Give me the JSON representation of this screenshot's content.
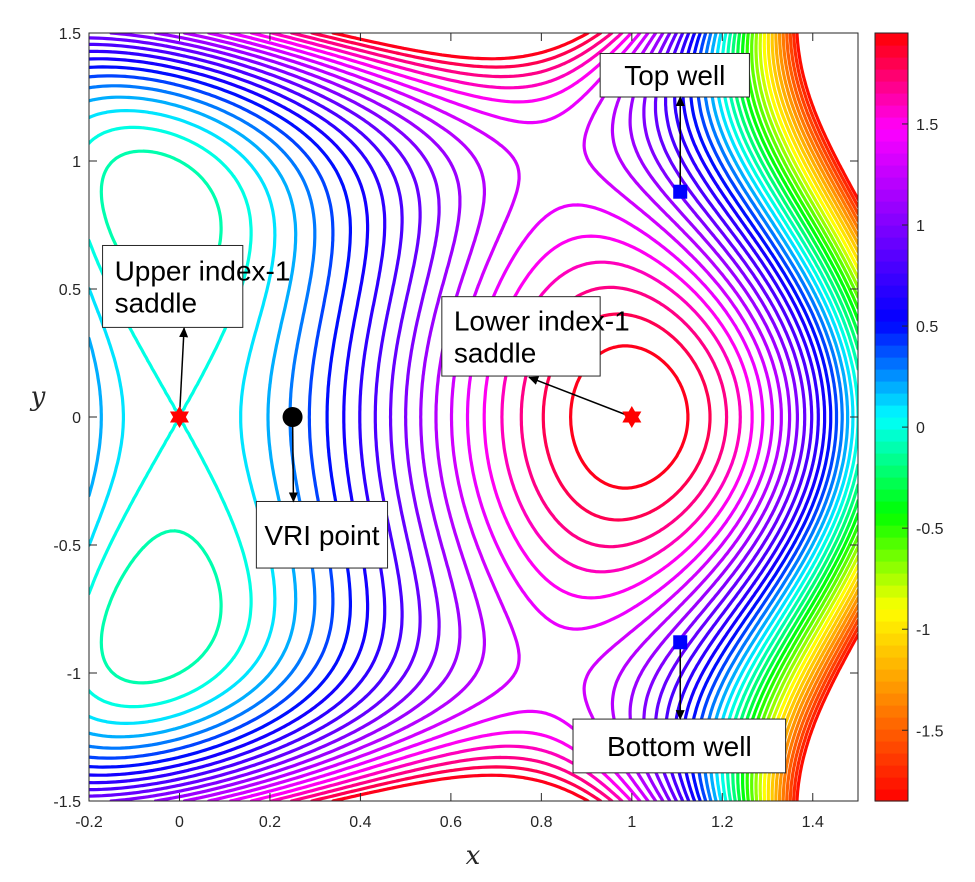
{
  "chart_data": {
    "type": "contour",
    "title": "",
    "xlabel": "x",
    "ylabel": "y",
    "xlim": [
      -0.2,
      1.5
    ],
    "ylim": [
      -1.5,
      1.5
    ],
    "xticks": [
      "-0.2",
      "0",
      "0.2",
      "0.4",
      "0.6",
      "0.8",
      "1",
      "1.2",
      "1.4"
    ],
    "yticks": [
      "-1.5",
      "-1",
      "-0.5",
      "0",
      "0.5",
      "1",
      "1.5"
    ],
    "colorbar": {
      "range": [
        -1.85,
        1.95
      ],
      "ticks": [
        "-1.5",
        "-1",
        "-0.5",
        "0",
        "0.5",
        "1",
        "1.5"
      ],
      "colormap": [
        "#ff0000",
        "#ff8000",
        "#ffff00",
        "#00ff00",
        "#00ffff",
        "#0000ff",
        "#8000ff",
        "#ff00ff",
        "#ff0000"
      ]
    },
    "contour_levels": [
      -1.8,
      -1.7,
      -1.6,
      -1.5,
      -1.4,
      -1.3,
      -1.2,
      -1.1,
      -1.0,
      -0.9,
      -0.8,
      -0.7,
      -0.6,
      -0.5,
      -0.4,
      -0.3,
      -0.2,
      -0.1,
      0.0,
      0.1,
      0.2,
      0.3,
      0.4,
      0.5,
      0.6,
      0.7,
      0.8,
      0.9,
      1.0,
      1.1,
      1.2,
      1.3,
      1.4,
      1.5,
      1.6,
      1.7,
      1.8,
      1.9
    ],
    "points": [
      {
        "name": "upper-index-1-saddle",
        "x": 0.0,
        "y": 0.0,
        "marker": "hexagram",
        "color": "#ff0000"
      },
      {
        "name": "lower-index-1-saddle",
        "x": 1.0,
        "y": 0.0,
        "marker": "hexagram",
        "color": "#ff0000"
      },
      {
        "name": "vri-point",
        "x": 0.25,
        "y": 0.0,
        "marker": "circle",
        "color": "#000000"
      },
      {
        "name": "top-well",
        "x": 1.107,
        "y": 0.88,
        "marker": "square",
        "color": "#0000ff"
      },
      {
        "name": "bottom-well",
        "x": 1.107,
        "y": -0.88,
        "marker": "square",
        "color": "#0000ff"
      }
    ],
    "annotations": [
      {
        "id": "top",
        "lines": [
          "Top well"
        ],
        "box": [
          0.93,
          1.25,
          1.26,
          1.42
        ],
        "arrow_from": [
          1.107,
          0.88
        ],
        "arrow_to": [
          1.107,
          1.25
        ]
      },
      {
        "id": "upper",
        "lines": [
          "Upper index-1",
          "saddle"
        ],
        "box": [
          -0.17,
          0.35,
          0.14,
          0.67
        ],
        "arrow_from": [
          0.0,
          0.0
        ],
        "arrow_to": [
          0.0102,
          0.347
        ]
      },
      {
        "id": "lower",
        "lines": [
          "Lower index-1",
          "saddle"
        ],
        "box": [
          0.58,
          0.16,
          0.93,
          0.47
        ],
        "arrow_from": [
          1.0,
          0.0
        ],
        "arrow_to": [
          0.773,
          0.155
        ]
      },
      {
        "id": "vri",
        "lines": [
          "VRI point"
        ],
        "box": [
          0.17,
          -0.59,
          0.46,
          -0.33
        ],
        "arrow_from": [
          0.25,
          0.0
        ],
        "arrow_to": [
          0.252,
          -0.33
        ]
      },
      {
        "id": "bottom",
        "lines": [
          "Bottom well"
        ],
        "box": [
          0.87,
          -1.39,
          1.34,
          -1.18
        ],
        "arrow_from": [
          1.107,
          -0.88
        ],
        "arrow_to": [
          1.107,
          -1.18
        ]
      }
    ]
  }
}
